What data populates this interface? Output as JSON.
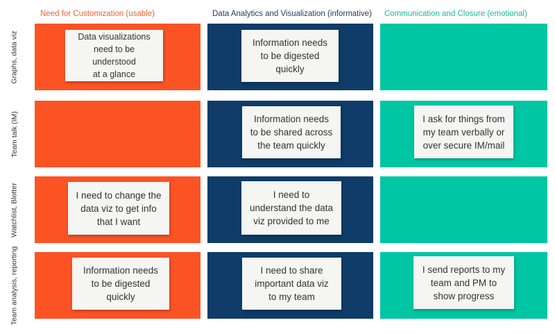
{
  "colors": {
    "orange": "#fc5325",
    "navy": "#0f3c68",
    "teal": "#01c6a3",
    "header_orange": "#f2602f",
    "header_navy": "#1f3b5c",
    "header_teal": "#19b89c"
  },
  "columns": [
    {
      "label": "Need for Customization (usable)"
    },
    {
      "label": "Data Analytics and Visualization (informative)"
    },
    {
      "label": "Communication and Closure (emotional)"
    }
  ],
  "rows": [
    {
      "label": "Graphs, data viz"
    },
    {
      "label": "Team talk (IM)"
    },
    {
      "label": "Watchlist, Blotter"
    },
    {
      "label": "Team analysis,\nreporting"
    }
  ],
  "notes": {
    "r0c0": "Data visualizations\nneed to be understood\nat a glance",
    "r0c1": "Information needs\nto be digested\nquickly",
    "r1c1": "Information needs\nto be shared across\nthe team quickly",
    "r1c2": "I ask for things from\nmy team verbally or\nover secure IM/mail",
    "r2c0": "I need to change the\ndata viz to get info\nthat I want",
    "r2c1": "I need to\nunderstand the data\nviz provided to me",
    "r3c0": "Information needs\nto be digested\nquickly",
    "r3c1": "I need to share\nimportant data viz\nto my team",
    "r3c2": "I send reports to my\nteam and PM to\nshow progress"
  }
}
